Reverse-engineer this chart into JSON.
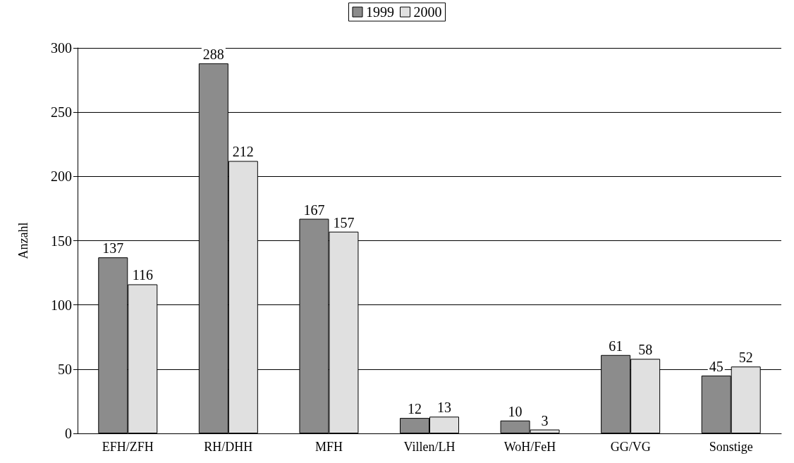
{
  "chart_data": {
    "type": "bar",
    "ylabel": "Anzahl",
    "categories": [
      "EFH/ZFH",
      "RH/DHH",
      "MFH",
      "Villen/LH",
      "WoH/FeH",
      "GG/VG",
      "Sonstige"
    ],
    "series": [
      {
        "name": "1999",
        "color": "#8c8c8c",
        "values": [
          137,
          288,
          167,
          12,
          10,
          61,
          45
        ]
      },
      {
        "name": "2000",
        "color": "#e0e0e0",
        "values": [
          116,
          212,
          157,
          13,
          3,
          58,
          52
        ]
      }
    ],
    "ylim": [
      0,
      300
    ],
    "yticks": [
      0,
      50,
      100,
      150,
      200,
      250,
      300
    ],
    "grid": "y",
    "legend": "top",
    "data_labels": true
  }
}
